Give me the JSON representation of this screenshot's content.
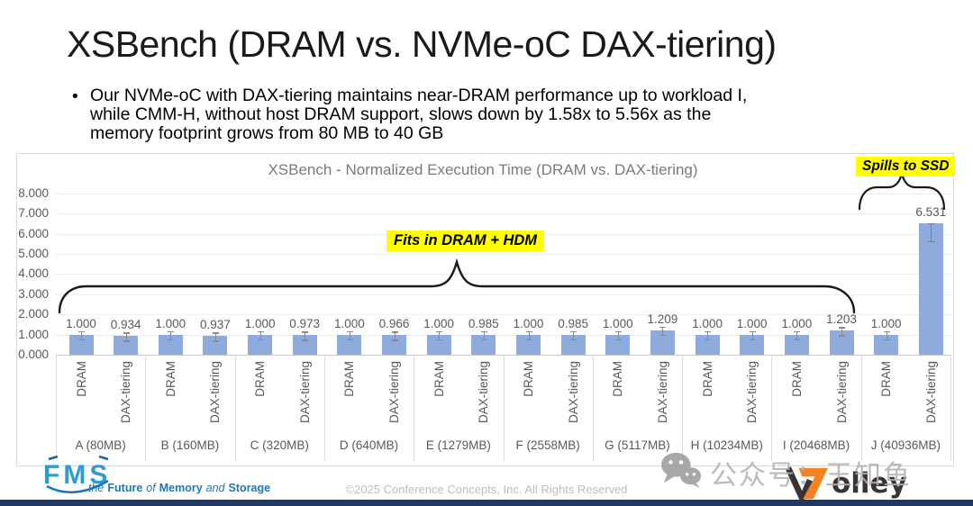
{
  "slide": {
    "title": "XSBench (DRAM vs. NVMe-oC DAX-tiering)",
    "bullet": {
      "marker": "•",
      "lines": [
        "Our NVMe-oC with DAX-tiering maintains near-DRAM performance up to workload I,",
        "while CMM-H, without host DRAM support, slows down by 1.58x to 5.56x as the",
        "memory footprint grows from 80 MB to 40 GB"
      ]
    }
  },
  "chart_data": {
    "type": "bar",
    "title": "XSBench - Normalized Execution Time (DRAM vs. DAX-tiering)",
    "categories": [
      "A (80MB)",
      "B (160MB)",
      "C (320MB)",
      "D (640MB)",
      "E (1279MB)",
      "F (2558MB)",
      "G (5117MB)",
      "H (10234MB)",
      "I (20468MB)",
      "J (40936MB)"
    ],
    "series": [
      {
        "name": "DRAM",
        "values": [
          1.0,
          1.0,
          1.0,
          1.0,
          1.0,
          1.0,
          1.0,
          1.0,
          1.0,
          1.0
        ],
        "labels": [
          "1.000",
          "1.000",
          "1.000",
          "1.000",
          "1.000",
          "1.000",
          "1.000",
          "1.000",
          "1.000",
          "1.000"
        ]
      },
      {
        "name": "DAX-tiering",
        "values": [
          0.934,
          0.937,
          0.973,
          0.966,
          0.985,
          0.985,
          1.209,
          1.0,
          1.203,
          6.531
        ],
        "labels": [
          "0.934",
          "0.937",
          "0.973",
          "0.966",
          "0.985",
          "0.985",
          "1.209",
          "1.000",
          "1.203",
          "6.531"
        ]
      }
    ],
    "xlabel": "",
    "ylabel": "",
    "ylim": [
      0,
      8
    ],
    "ytick_labels": [
      "0.000",
      "1.000",
      "2.000",
      "3.000",
      "4.000",
      "5.000",
      "6.000",
      "7.000",
      "8.000"
    ],
    "grid": true,
    "legend_position": "none",
    "bar_color": "#8FAADC",
    "error_bars": true,
    "annotations": [
      {
        "text": "Fits in DRAM + HDM",
        "highlight": "#FFFF00",
        "spans": "groups A-I"
      },
      {
        "text": "Spills to SSD",
        "highlight": "#FFFF00",
        "spans": "group J DAX-tiering bar"
      }
    ]
  },
  "footer": {
    "fms": {
      "logo_text": "FMS",
      "tagline_parts": [
        "the",
        "Future",
        "of",
        "Memory",
        "and",
        "Storage"
      ]
    },
    "copyright": "©2025 Conference Concepts, Inc. All Rights Reserved",
    "watermark": {
      "text": "公众号：王知鱼",
      "icon": "wechat-icon"
    },
    "wolley": {
      "logo_text": "olley"
    }
  },
  "colors": {
    "bar_blue": "#8FAADC",
    "highlight_yellow": "#FFFF00",
    "fms_blue": "#2E9BD5",
    "wolley_orange": "#F58220",
    "bottom_bar_navy": "#1F3864",
    "axis_text_gray": "#595959"
  }
}
